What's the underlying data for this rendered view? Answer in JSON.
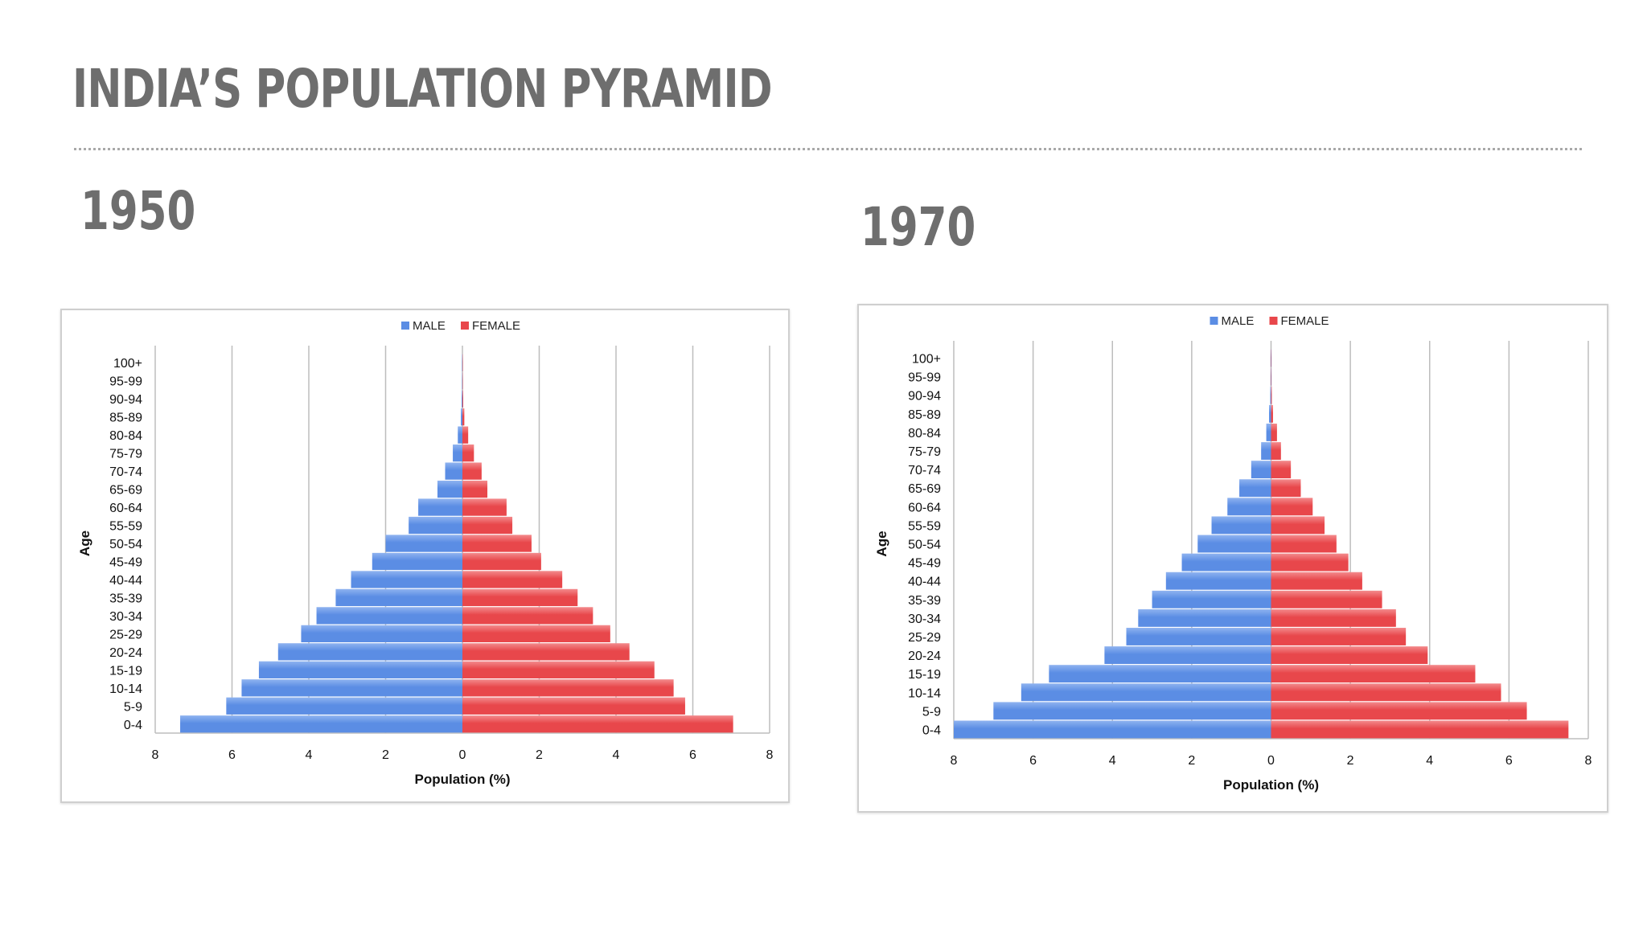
{
  "slide": {
    "title": "INDIA’S POPULATION PYRAMID"
  },
  "colors": {
    "male": "#5b8de4",
    "female": "#e8474b",
    "text": "#6e6e6e"
  },
  "chart_data": [
    {
      "type": "bar",
      "orientation": "horizontal-pyramid",
      "title": "1950",
      "xlabel": "Population (%)",
      "ylabel": "Age",
      "xlim": [
        -8,
        8
      ],
      "xticks": [
        "8",
        "6",
        "4",
        "2",
        "0",
        "2",
        "4",
        "6",
        "8"
      ],
      "grid": true,
      "legend": "top",
      "categories": [
        "0-4",
        "5-9",
        "10-14",
        "15-19",
        "20-24",
        "25-29",
        "30-34",
        "35-39",
        "40-44",
        "45-49",
        "50-54",
        "55-59",
        "60-64",
        "65-69",
        "70-74",
        "75-79",
        "80-84",
        "85-89",
        "90-94",
        "95-99",
        "100+"
      ],
      "series": [
        {
          "name": "MALE",
          "values": [
            7.35,
            6.15,
            5.75,
            5.3,
            4.8,
            4.2,
            3.8,
            3.3,
            2.9,
            2.35,
            2.0,
            1.4,
            1.15,
            0.65,
            0.45,
            0.25,
            0.12,
            0.04,
            0.02,
            0.01,
            0.01
          ]
        },
        {
          "name": "FEMALE",
          "values": [
            7.05,
            5.8,
            5.5,
            5.0,
            4.35,
            3.85,
            3.4,
            3.0,
            2.6,
            2.05,
            1.8,
            1.3,
            1.15,
            0.65,
            0.5,
            0.3,
            0.15,
            0.05,
            0.02,
            0.01,
            0.01
          ]
        }
      ]
    },
    {
      "type": "bar",
      "orientation": "horizontal-pyramid",
      "title": "1970",
      "xlabel": "Population (%)",
      "ylabel": "Age",
      "xlim": [
        -8,
        8
      ],
      "xticks": [
        "8",
        "6",
        "4",
        "2",
        "0",
        "2",
        "4",
        "6",
        "8"
      ],
      "grid": true,
      "legend": "top",
      "categories": [
        "0-4",
        "5-9",
        "10-14",
        "15-19",
        "20-24",
        "25-29",
        "30-34",
        "35-39",
        "40-44",
        "45-49",
        "50-54",
        "55-59",
        "60-64",
        "65-69",
        "70-74",
        "75-79",
        "80-84",
        "85-89",
        "90-94",
        "95-99",
        "100+"
      ],
      "series": [
        {
          "name": "MALE",
          "values": [
            8.0,
            7.0,
            6.3,
            5.6,
            4.2,
            3.65,
            3.35,
            3.0,
            2.65,
            2.25,
            1.85,
            1.5,
            1.1,
            0.8,
            0.5,
            0.25,
            0.12,
            0.05,
            0.02,
            0.01,
            0.01
          ]
        },
        {
          "name": "FEMALE",
          "values": [
            7.5,
            6.45,
            5.8,
            5.15,
            3.95,
            3.4,
            3.15,
            2.8,
            2.3,
            1.95,
            1.65,
            1.35,
            1.05,
            0.75,
            0.5,
            0.25,
            0.15,
            0.05,
            0.02,
            0.01,
            0.01
          ]
        }
      ]
    }
  ]
}
